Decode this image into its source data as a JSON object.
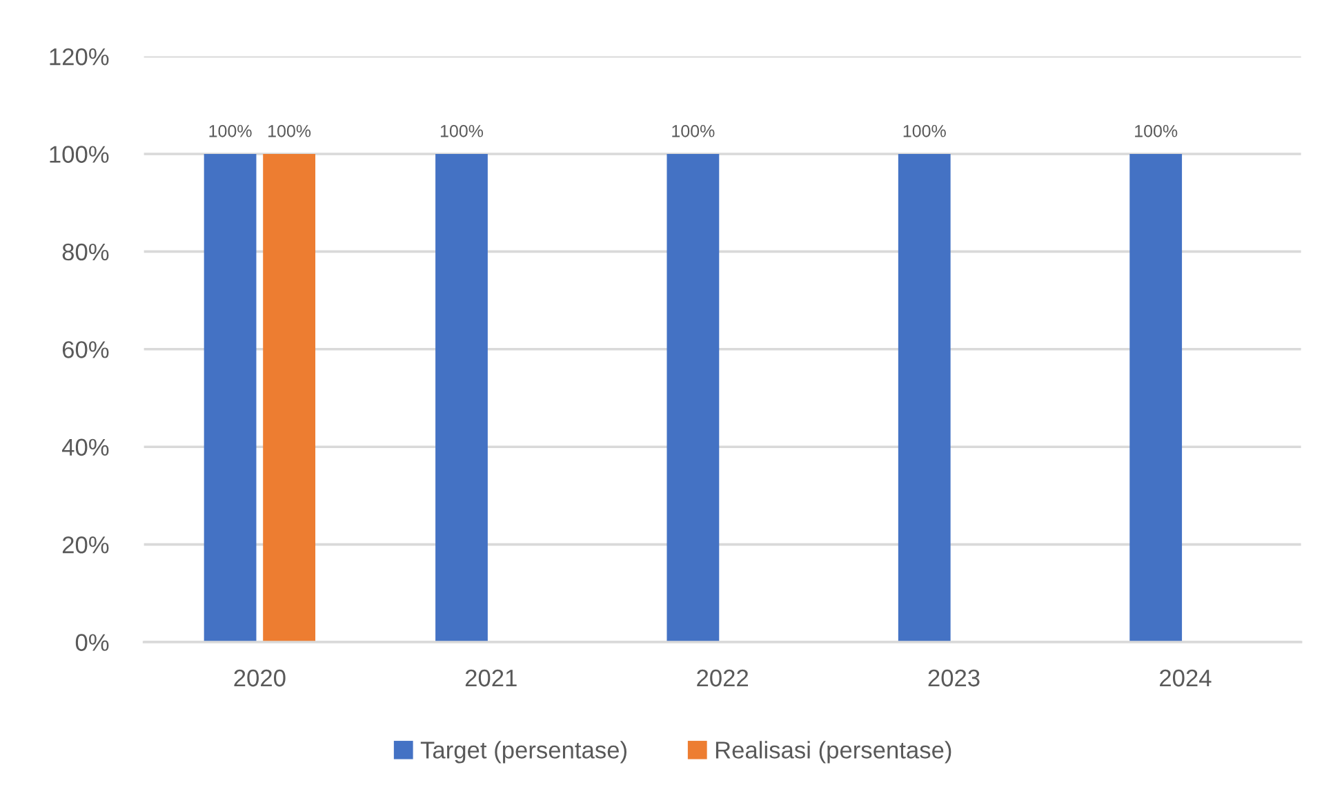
{
  "chart_data": {
    "type": "bar",
    "categories": [
      "2020",
      "2021",
      "2022",
      "2023",
      "2024"
    ],
    "series": [
      {
        "name": "Target (persentase)",
        "color": "#4472c4",
        "values": [
          100,
          100,
          100,
          100,
          100
        ],
        "value_labels": [
          "100%",
          "100%",
          "100%",
          "100%",
          "100%"
        ]
      },
      {
        "name": "Realisasi (persentase)",
        "color": "#ed7d31",
        "values": [
          100,
          null,
          null,
          null,
          null
        ],
        "value_labels": [
          "100%",
          null,
          null,
          null,
          null
        ]
      }
    ],
    "ylim": [
      0,
      120
    ],
    "yticks": [
      {
        "value": 0,
        "label": "0%"
      },
      {
        "value": 20,
        "label": "20%"
      },
      {
        "value": 40,
        "label": "40%"
      },
      {
        "value": 60,
        "label": "60%"
      },
      {
        "value": 80,
        "label": "80%"
      },
      {
        "value": 100,
        "label": "100%"
      },
      {
        "value": 120,
        "label": "120%"
      }
    ],
    "grid": "y",
    "legend": "bottom"
  }
}
